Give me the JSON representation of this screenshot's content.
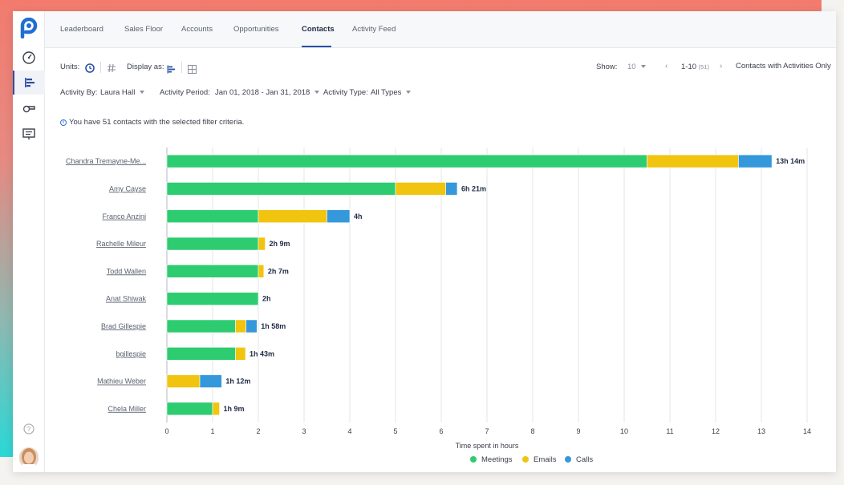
{
  "nav": {
    "tabs": [
      {
        "label": "Leaderboard"
      },
      {
        "label": "Sales Floor"
      },
      {
        "label": "Accounts"
      },
      {
        "label": "Opportunities"
      },
      {
        "label": "Contacts"
      },
      {
        "label": "Activity Feed"
      }
    ],
    "active_tab": "Contacts"
  },
  "toolbar": {
    "units_label": "Units:",
    "display_as_label": "Display as:",
    "show_label": "Show:",
    "show_value": "10",
    "pagination_range": "1-10",
    "pagination_total": "(51)",
    "contacts_with_activities_label": "Contacts with Activities Only"
  },
  "filters": {
    "activity_by_label": "Activity By:",
    "activity_by_value": "Laura Hall",
    "activity_period_label": "Activity Period:",
    "activity_period_value": "Jan 01, 2018 - Jan 31, 2018",
    "activity_type_label": "Activity Type:",
    "activity_type_value": "All Types"
  },
  "info_message": "You have 51 contacts with the selected filter criteria.",
  "colors": {
    "meetings": "#2ecc71",
    "emails": "#f1c40f",
    "calls": "#3498db",
    "accent": "#2a4fa3"
  },
  "chart_data": {
    "type": "bar",
    "orientation": "horizontal",
    "stacked": true,
    "categories": [
      "Chandra Tremayne-Me...",
      "Amy Cayse",
      "Franco Anzini",
      "Rachelle Mileur",
      "Todd Wallen",
      "Anat Shiwak",
      "Brad Gillespie",
      "bgillespie",
      "Mathieu Weber",
      "Chela Miller"
    ],
    "series": [
      {
        "name": "Meetings",
        "values": [
          10.5,
          5.0,
          2.0,
          2.0,
          2.0,
          2.0,
          1.5,
          1.5,
          0,
          1.0
        ]
      },
      {
        "name": "Emails",
        "values": [
          2.0,
          1.1,
          1.5,
          0.15,
          0.12,
          0,
          0.23,
          0.22,
          0.72,
          0.15
        ]
      },
      {
        "name": "Calls",
        "values": [
          0.73,
          0.25,
          0.5,
          0,
          0,
          0,
          0.24,
          0,
          0.48,
          0
        ]
      }
    ],
    "total_labels": [
      "13h 14m",
      "6h 21m",
      "4h",
      "2h 9m",
      "2h 7m",
      "2h",
      "1h 58m",
      "1h 43m",
      "1h 12m",
      "1h 9m"
    ],
    "xlabel": "Time spent in hours",
    "xlim": [
      0,
      14
    ],
    "xticks": [
      0,
      1,
      2,
      3,
      4,
      5,
      6,
      7,
      8,
      9,
      10,
      11,
      12,
      13,
      14
    ],
    "grid": true,
    "legend_position": "bottom-center"
  }
}
